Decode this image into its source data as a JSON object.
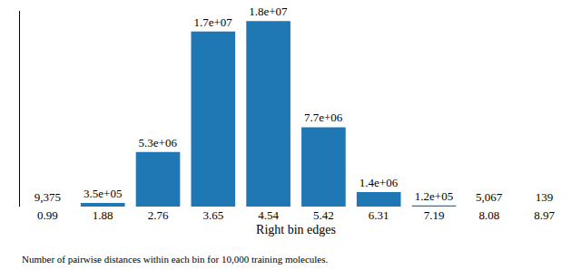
{
  "chart_data": {
    "type": "bar",
    "x_label": "Right bin edges",
    "caption": "Number of pairwise distances within each bin for 10,000 training molecules.",
    "categories": [
      "0.99",
      "1.88",
      "2.76",
      "3.65",
      "4.54",
      "5.42",
      "6.31",
      "7.19",
      "8.08",
      "8.97"
    ],
    "values": [
      9375,
      350000,
      5300000,
      17000000,
      18000000,
      7700000,
      1400000,
      120000,
      5067,
      139
    ],
    "value_labels": [
      "9,375",
      "3.5e+05",
      "5.3e+06",
      "1.7e+07",
      "1.8e+07",
      "7.7e+06",
      "1.4e+06",
      "1.2e+05",
      "5,067",
      "139"
    ],
    "color": "#1f77b4",
    "ylim": [
      0,
      19000000
    ],
    "data_labels": true,
    "tick_labels": "x",
    "grid": false
  }
}
